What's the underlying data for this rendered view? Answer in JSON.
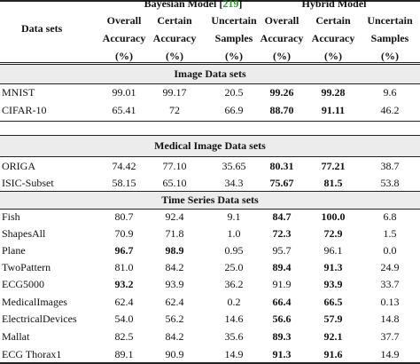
{
  "header": {
    "data_sets": "Data sets",
    "groups": [
      {
        "pre": "Bayesian Model [",
        "cite": "219",
        "post": "]"
      },
      {
        "pre": "Hybrid Model",
        "cite": "",
        "post": ""
      }
    ],
    "subheads": [
      [
        "Overall",
        "Accuracy",
        "(%)"
      ],
      [
        "Certain",
        "Accuracy",
        "(%)"
      ],
      [
        "Uncertain",
        "Samples",
        "(%)"
      ],
      [
        "Overall",
        "Accuracy",
        "(%)"
      ],
      [
        "Certain",
        "Accuracy",
        "(%)"
      ],
      [
        "Uncertain",
        "Samples",
        "(%)"
      ]
    ]
  },
  "sections": [
    {
      "title": "Image Data sets",
      "rows": [
        {
          "name": "MNIST",
          "vals": [
            "99.01",
            "99.17",
            "20.5",
            "99.26",
            "99.28",
            "9.6"
          ],
          "bold": [
            false,
            false,
            false,
            true,
            true,
            false
          ]
        },
        {
          "name": "CIFAR-10",
          "vals": [
            "65.41",
            "72",
            "66.9",
            "88.70",
            "91.11",
            "46.2"
          ],
          "bold": [
            false,
            false,
            false,
            true,
            true,
            false
          ]
        }
      ]
    },
    {
      "title": "Medical Image Data sets",
      "rows": [
        {
          "name": "ORIGA",
          "vals": [
            "74.42",
            "77.10",
            "35.65",
            "80.31",
            "77.21",
            "38.7"
          ],
          "bold": [
            false,
            false,
            false,
            true,
            true,
            false
          ]
        },
        {
          "name": "ISIC-Subset",
          "vals": [
            "58.15",
            "65.10",
            "34.3",
            "75.67",
            "81.5",
            "53.8"
          ],
          "bold": [
            false,
            false,
            false,
            true,
            true,
            false
          ]
        }
      ]
    },
    {
      "title": "Time Series Data sets",
      "rows": [
        {
          "name": "Fish",
          "vals": [
            "80.7",
            "92.4",
            "9.1",
            "84.7",
            "100.0",
            "6.8"
          ],
          "bold": [
            false,
            false,
            false,
            true,
            true,
            false
          ]
        },
        {
          "name": "ShapesAll",
          "vals": [
            "70.9",
            "71.8",
            "1.0",
            "72.3",
            "72.9",
            "1.5"
          ],
          "bold": [
            false,
            false,
            false,
            true,
            true,
            false
          ]
        },
        {
          "name": "Plane",
          "vals": [
            "96.7",
            "98.9",
            "0.95",
            "95.7",
            "96.1",
            "0.0"
          ],
          "bold": [
            true,
            true,
            false,
            false,
            false,
            false
          ]
        },
        {
          "name": "TwoPattern",
          "vals": [
            "81.0",
            "84.2",
            "25.0",
            "89.4",
            "91.3",
            "24.9"
          ],
          "bold": [
            false,
            false,
            false,
            true,
            true,
            false
          ]
        },
        {
          "name": "ECG5000",
          "vals": [
            "93.2",
            "93.9",
            "36.2",
            "91.9",
            "93.9",
            "33.7"
          ],
          "bold": [
            true,
            false,
            false,
            false,
            true,
            false
          ]
        },
        {
          "name": "MedicalImages",
          "vals": [
            "62.4",
            "62.4",
            "0.2",
            "66.4",
            "66.5",
            "0.13"
          ],
          "bold": [
            false,
            false,
            false,
            true,
            true,
            false
          ]
        },
        {
          "name": "ElectricalDevices",
          "vals": [
            "54.0",
            "56.2",
            "14.6",
            "56.6",
            "57.9",
            "14.8"
          ],
          "bold": [
            false,
            false,
            false,
            true,
            true,
            false
          ]
        },
        {
          "name": "Mallat",
          "vals": [
            "82.5",
            "84.2",
            "35.6",
            "89.3",
            "92.1",
            "37.7"
          ],
          "bold": [
            false,
            false,
            false,
            true,
            true,
            false
          ]
        },
        {
          "name": "ECG Thorax1",
          "vals": [
            "89.1",
            "90.9",
            "14.9",
            "91.3",
            "91.6",
            "14.9"
          ],
          "bold": [
            false,
            false,
            false,
            true,
            true,
            false
          ]
        }
      ]
    }
  ]
}
